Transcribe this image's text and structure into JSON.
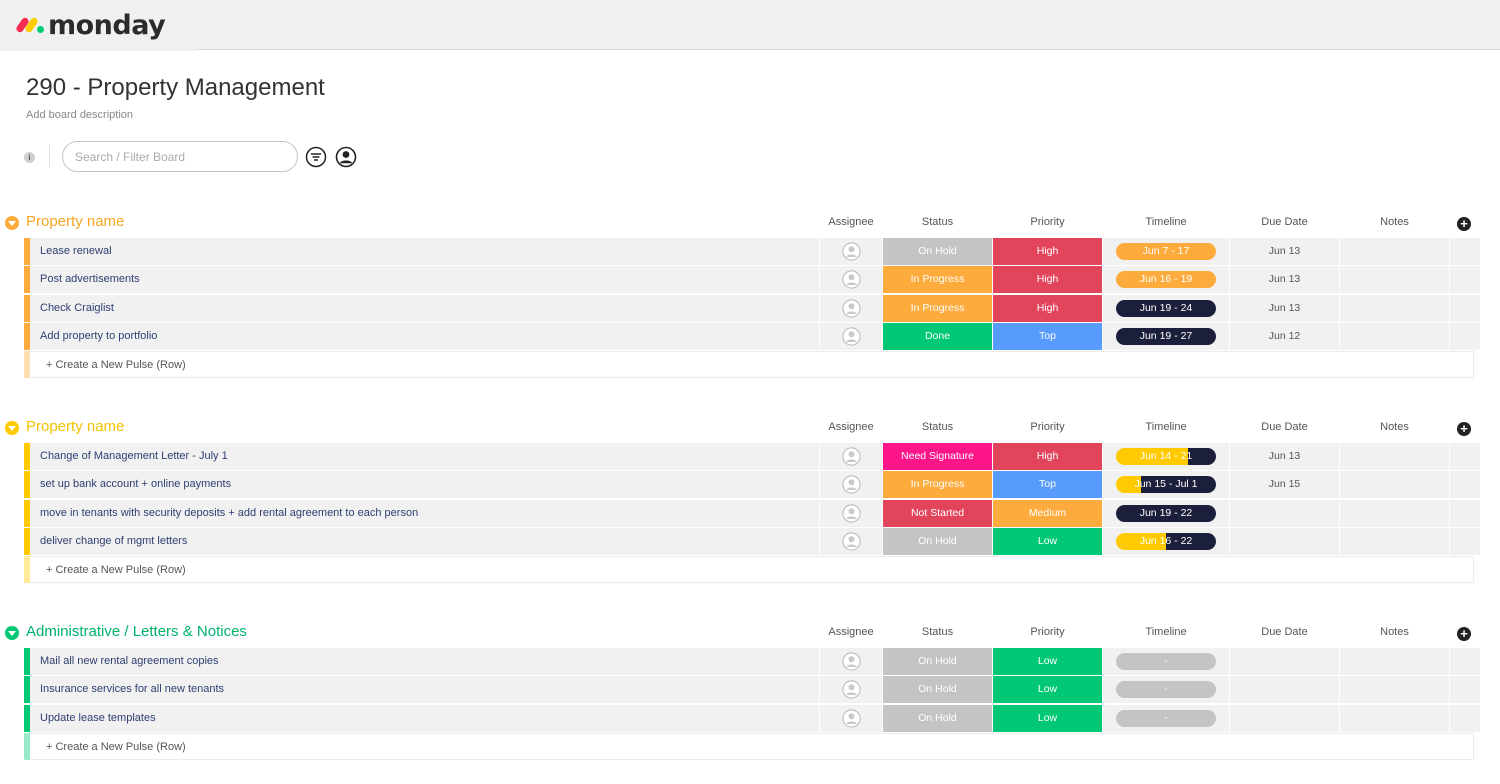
{
  "app": {
    "logo_text": "monday"
  },
  "board": {
    "title": "290 - Property Management",
    "description": "Add board description",
    "info_label": "i",
    "search_placeholder": "Search / Filter Board"
  },
  "columns": {
    "assignee": "Assignee",
    "status": "Status",
    "priority": "Priority",
    "timeline": "Timeline",
    "due": "Due Date",
    "notes": "Notes"
  },
  "new_pulse_label": "+ Create a New Pulse (Row)",
  "colors": {
    "orange": "#fdab3d",
    "yellow": "#ffcb00",
    "green": "#00c875",
    "grey": "#c4c4c4",
    "red": "#e2445c",
    "blue": "#579bfc",
    "pink": "#ff158a",
    "navy": "#1c1f3b"
  },
  "groups": [
    {
      "title": "Property name",
      "color": "#fdab3d",
      "title_color": "#f5a623",
      "rows": [
        {
          "name": "Lease renewal",
          "status": "On Hold",
          "status_color": "#c4c4c4",
          "priority": "High",
          "priority_color": "#e2445c",
          "timeline": "Jun 7 - 17",
          "timeline_color": "#fdab3d",
          "timeline_progress": 1,
          "due": "Jun 13"
        },
        {
          "name": "Post advertisements",
          "status": "In Progress",
          "status_color": "#fdab3d",
          "priority": "High",
          "priority_color": "#e2445c",
          "timeline": "Jun 16 - 19",
          "timeline_color": "#fdab3d",
          "timeline_progress": 1,
          "due": "Jun 13"
        },
        {
          "name": "Check Craiglist",
          "status": "In Progress",
          "status_color": "#fdab3d",
          "priority": "High",
          "priority_color": "#e2445c",
          "timeline": "Jun 19 - 24",
          "timeline_color": "#fdab3d",
          "timeline_progress": 0,
          "due": "Jun 13"
        },
        {
          "name": "Add property to portfolio",
          "status": "Done",
          "status_color": "#00c875",
          "priority": "Top",
          "priority_color": "#579bfc",
          "timeline": "Jun 19 - 27",
          "timeline_color": "#fdab3d",
          "timeline_progress": 0,
          "due": "Jun 12"
        }
      ]
    },
    {
      "title": "Property name",
      "color": "#ffcb00",
      "title_color": "#f2c200",
      "rows": [
        {
          "name": "Change of Management Letter - July 1",
          "status": "Need Signature",
          "status_color": "#ff158a",
          "priority": "High",
          "priority_color": "#e2445c",
          "timeline": "Jun 14 - 21",
          "timeline_color": "#ffcb00",
          "timeline_progress": 0.72,
          "due": "Jun 13"
        },
        {
          "name": "set up bank account + online payments",
          "status": "In Progress",
          "status_color": "#fdab3d",
          "priority": "Top",
          "priority_color": "#579bfc",
          "timeline": "Jun 15 - Jul 1",
          "timeline_color": "#ffcb00",
          "timeline_progress": 0.25,
          "due": "Jun 15"
        },
        {
          "name": "move in tenants with security deposits + add rental agreement to each person",
          "status": "Not Started",
          "status_color": "#e2445c",
          "priority": "Medium",
          "priority_color": "#fdab3d",
          "timeline": "Jun 19 - 22",
          "timeline_color": "#ffcb00",
          "timeline_progress": 0,
          "due": ""
        },
        {
          "name": "deliver change of mgmt letters",
          "status": "On Hold",
          "status_color": "#c4c4c4",
          "priority": "Low",
          "priority_color": "#00c875",
          "timeline": "Jun 16 - 22",
          "timeline_color": "#ffcb00",
          "timeline_progress": 0.5,
          "due": ""
        }
      ]
    },
    {
      "title": "Administrative / Letters & Notices",
      "color": "#00c875",
      "title_color": "#00b36b",
      "rows": [
        {
          "name": "Mail all new rental agreement copies",
          "status": "On Hold",
          "status_color": "#c4c4c4",
          "priority": "Low",
          "priority_color": "#00c875",
          "timeline": "-",
          "timeline_color": "#c4c4c4",
          "timeline_progress": 1,
          "due": ""
        },
        {
          "name": "Insurance services for all new tenants",
          "status": "On Hold",
          "status_color": "#c4c4c4",
          "priority": "Low",
          "priority_color": "#00c875",
          "timeline": "-",
          "timeline_color": "#c4c4c4",
          "timeline_progress": 1,
          "due": ""
        },
        {
          "name": "Update lease templates",
          "status": "On Hold",
          "status_color": "#c4c4c4",
          "priority": "Low",
          "priority_color": "#00c875",
          "timeline": "-",
          "timeline_color": "#c4c4c4",
          "timeline_progress": 1,
          "due": ""
        }
      ]
    }
  ]
}
